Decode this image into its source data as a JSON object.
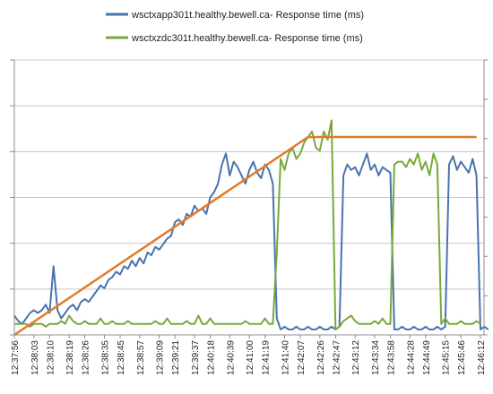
{
  "chart_data": {
    "type": "line",
    "title": "",
    "xlabel": "",
    "ylabel": "",
    "x_tick_labels": [
      "12:37:56",
      "12:38:03",
      "12:38:10",
      "12:38:19",
      "12:38:26",
      "12:38:35",
      "12:38:45",
      "12:38:57",
      "12:39:09",
      "12:39:21",
      "12:39:37",
      "12:40:18",
      "12:40:39",
      "12:41:00",
      "12:41:19",
      "12:41:40",
      "12:42:07",
      "12:42:26",
      "12:42:47",
      "12:43:12",
      "12:43:34",
      "12:43:58",
      "12:44:28",
      "12:44:49",
      "12:45:15",
      "12:45:46",
      "12:46:12"
    ],
    "x_count": 120,
    "ylim": [
      0,
      1
    ],
    "grid": "horizontal",
    "legend_position": "top",
    "series": [
      {
        "name": "wsctxapp301t.healthy.bewell.ca-  Response time (ms)",
        "color": "#4a73ad",
        "values": [
          0.07,
          0.05,
          0.04,
          0.06,
          0.08,
          0.09,
          0.08,
          0.09,
          0.11,
          0.08,
          0.25,
          0.09,
          0.06,
          0.08,
          0.1,
          0.11,
          0.09,
          0.12,
          0.13,
          0.12,
          0.14,
          0.16,
          0.18,
          0.17,
          0.2,
          0.21,
          0.23,
          0.22,
          0.25,
          0.24,
          0.27,
          0.25,
          0.28,
          0.26,
          0.3,
          0.29,
          0.32,
          0.31,
          0.33,
          0.35,
          0.36,
          0.41,
          0.42,
          0.4,
          0.44,
          0.43,
          0.47,
          0.45,
          0.46,
          0.44,
          0.5,
          0.52,
          0.55,
          0.62,
          0.66,
          0.58,
          0.63,
          0.61,
          0.58,
          0.55,
          0.6,
          0.63,
          0.59,
          0.57,
          0.62,
          0.6,
          0.55,
          0.06,
          0.02,
          0.03,
          0.02,
          0.02,
          0.03,
          0.02,
          0.02,
          0.03,
          0.02,
          0.02,
          0.03,
          0.02,
          0.02,
          0.03,
          0.02,
          0.03,
          0.58,
          0.62,
          0.6,
          0.61,
          0.58,
          0.62,
          0.66,
          0.6,
          0.62,
          0.58,
          0.61,
          0.6,
          0.59,
          0.02,
          0.02,
          0.03,
          0.02,
          0.02,
          0.03,
          0.02,
          0.02,
          0.03,
          0.02,
          0.02,
          0.03,
          0.02,
          0.03,
          0.62,
          0.65,
          0.6,
          0.63,
          0.61,
          0.59,
          0.64,
          0.58,
          0.02,
          0.03,
          0.02
        ]
      },
      {
        "name": "wsctxzdc301t.healthy.bewell.ca-  Response time (ms)",
        "color": "#7aa83c",
        "values": [
          0.04,
          0.04,
          0.04,
          0.04,
          0.03,
          0.04,
          0.04,
          0.04,
          0.03,
          0.04,
          0.04,
          0.04,
          0.05,
          0.04,
          0.07,
          0.05,
          0.04,
          0.04,
          0.05,
          0.04,
          0.04,
          0.04,
          0.06,
          0.04,
          0.04,
          0.05,
          0.04,
          0.04,
          0.04,
          0.05,
          0.04,
          0.04,
          0.04,
          0.04,
          0.04,
          0.04,
          0.05,
          0.04,
          0.04,
          0.06,
          0.04,
          0.04,
          0.04,
          0.04,
          0.05,
          0.04,
          0.04,
          0.07,
          0.04,
          0.04,
          0.06,
          0.04,
          0.04,
          0.04,
          0.04,
          0.04,
          0.04,
          0.04,
          0.04,
          0.05,
          0.04,
          0.04,
          0.04,
          0.04,
          0.06,
          0.04,
          0.04,
          0.3,
          0.64,
          0.6,
          0.66,
          0.68,
          0.64,
          0.66,
          0.7,
          0.72,
          0.74,
          0.68,
          0.67,
          0.74,
          0.71,
          0.78,
          0.02,
          0.03,
          0.05,
          0.06,
          0.07,
          0.05,
          0.04,
          0.04,
          0.04,
          0.04,
          0.05,
          0.04,
          0.06,
          0.04,
          0.04,
          0.62,
          0.63,
          0.63,
          0.61,
          0.64,
          0.62,
          0.66,
          0.6,
          0.63,
          0.58,
          0.66,
          0.62,
          0.04,
          0.06,
          0.04,
          0.04,
          0.04,
          0.05,
          0.04,
          0.04,
          0.04,
          0.05,
          0.04
        ]
      },
      {
        "name": "",
        "color": "#e07b2a",
        "values": [
          0.0,
          0.72,
          0.72
        ],
        "x_index": [
          0,
          75,
          118
        ]
      }
    ],
    "right_axis_label": "",
    "axis_style": "dual"
  }
}
